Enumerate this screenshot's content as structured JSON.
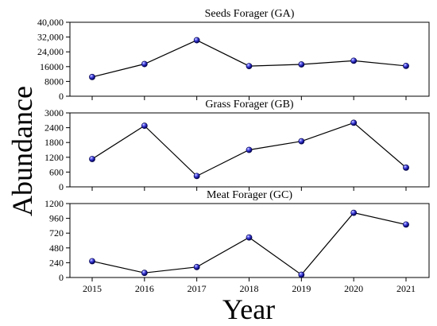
{
  "figure": {
    "ylabel": "Abundance",
    "xlabel": "Year"
  },
  "chart_data": [
    {
      "type": "line",
      "title": "Seeds Forager (GA)",
      "x": [
        2015,
        2016,
        2017,
        2018,
        2019,
        2020,
        2021
      ],
      "values": [
        10400,
        17400,
        30300,
        16300,
        17200,
        19200,
        16400
      ],
      "ylim": [
        0,
        40000
      ],
      "yticks": [
        0,
        8000,
        16000,
        24000,
        32000,
        40000
      ],
      "ytick_labels": [
        "0",
        "8000",
        "16000",
        "24,000",
        "32,000",
        "40,000"
      ],
      "xtick_labels": [],
      "grid": false,
      "marker_color": "#1a1aa0",
      "line_color": "#000000"
    },
    {
      "type": "line",
      "title": "Grass Forager (GB)",
      "x": [
        2015,
        2016,
        2017,
        2018,
        2019,
        2020,
        2021
      ],
      "values": [
        1130,
        2480,
        440,
        1500,
        1850,
        2600,
        780
      ],
      "ylim": [
        0,
        3000
      ],
      "yticks": [
        0,
        600,
        1200,
        1800,
        2400,
        3000
      ],
      "ytick_labels": [
        "0",
        "600",
        "1200",
        "1800",
        "2400",
        "3000"
      ],
      "xtick_labels": [],
      "grid": false,
      "marker_color": "#1a1aa0",
      "line_color": "#000000"
    },
    {
      "type": "line",
      "title": "Meat Forager (GC)",
      "x": [
        2015,
        2016,
        2017,
        2018,
        2019,
        2020,
        2021
      ],
      "values": [
        265,
        75,
        170,
        650,
        45,
        1050,
        860
      ],
      "ylim": [
        0,
        1200
      ],
      "yticks": [
        0,
        240,
        480,
        720,
        960,
        1200
      ],
      "ytick_labels": [
        "0",
        "240",
        "480",
        "720",
        "960",
        "1200"
      ],
      "xtick_labels": [
        "2015",
        "2016",
        "2017",
        "2018",
        "2019",
        "2020",
        "2021"
      ],
      "grid": false,
      "marker_color": "#1a1aa0",
      "line_color": "#000000"
    }
  ]
}
